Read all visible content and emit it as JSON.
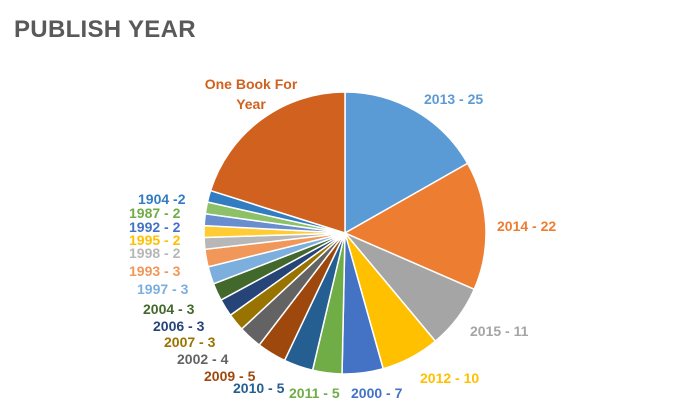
{
  "chart_data": {
    "type": "pie",
    "title": "PUBLISH YEAR",
    "slices": [
      {
        "label": "2013 - 25",
        "value": 25,
        "color": "#5b9bd5"
      },
      {
        "label": "2014 - 22",
        "value": 22,
        "color": "#ed7d31"
      },
      {
        "label": "2015 - 11",
        "value": 11,
        "color": "#a5a5a5"
      },
      {
        "label": "2012 - 10",
        "value": 10,
        "color": "#ffc000"
      },
      {
        "label": "2000 - 7",
        "value": 7,
        "color": "#4472c4"
      },
      {
        "label": "2011 - 5",
        "value": 5,
        "color": "#70ad47"
      },
      {
        "label": "2010 - 5",
        "value": 5,
        "color": "#255e91"
      },
      {
        "label": "2009 - 5",
        "value": 5,
        "color": "#9e480e"
      },
      {
        "label": "2002 - 4",
        "value": 4,
        "color": "#636363"
      },
      {
        "label": "2007 - 3",
        "value": 3,
        "color": "#997300"
      },
      {
        "label": "2006 - 3",
        "value": 3,
        "color": "#264478"
      },
      {
        "label": "2004 - 3",
        "value": 3,
        "color": "#43682b"
      },
      {
        "label": "1997 - 3",
        "value": 3,
        "color": "#7cafdd"
      },
      {
        "label": "1993 - 3",
        "value": 3,
        "color": "#f1975a"
      },
      {
        "label": "1998 - 2",
        "value": 2,
        "color": "#b7b7b7"
      },
      {
        "label": "1995 - 2",
        "value": 2,
        "color": "#ffcd33"
      },
      {
        "label": "1992 - 2",
        "value": 2,
        "color": "#698ed0"
      },
      {
        "label": "1987 - 2",
        "value": 2,
        "color": "#8cc168"
      },
      {
        "label": "1904 -2",
        "value": 2,
        "color": "#327dc2"
      },
      {
        "label": "One Book For Year",
        "value": 30,
        "color": "#d0611f"
      }
    ]
  }
}
